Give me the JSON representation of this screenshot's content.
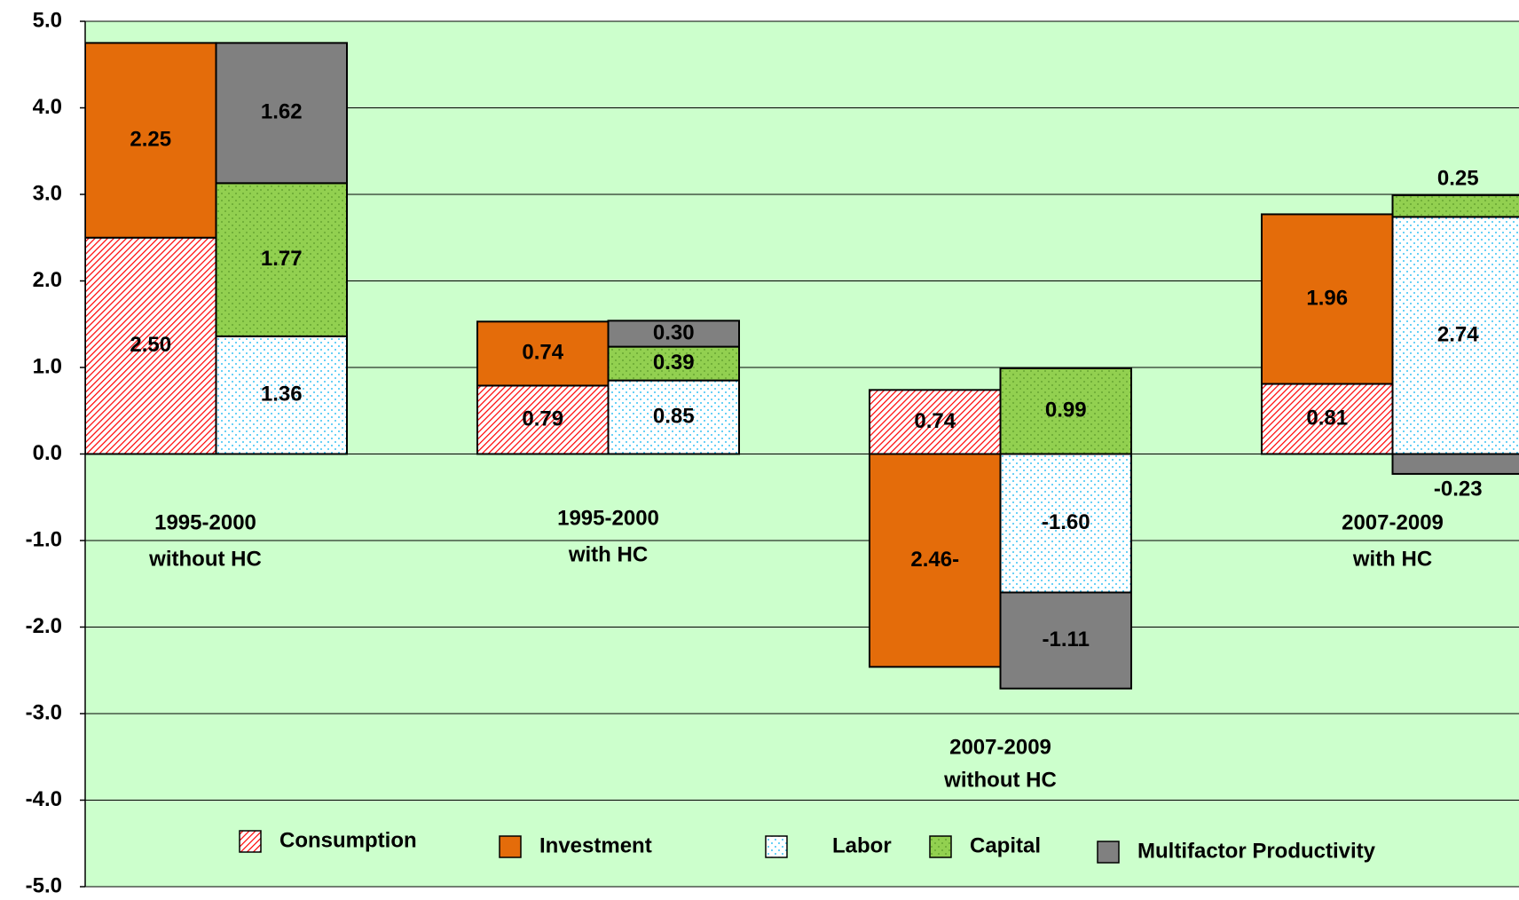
{
  "chart_data": {
    "type": "bar",
    "stacked": true,
    "categories": [
      [
        "1995-2000",
        "without  HC"
      ],
      [
        "1995-2000",
        "with HC"
      ],
      [
        "2007-2009",
        "without HC"
      ],
      [
        "2007-2009",
        "with HC"
      ]
    ],
    "series": [
      {
        "name": "Consumption",
        "stack": "output",
        "fill": "hatch",
        "color": "#ff0000",
        "values": [
          2.5,
          0.79,
          0.74,
          0.81
        ],
        "value_labels": [
          "2.50",
          "0.79",
          "0.74",
          "0.81"
        ]
      },
      {
        "name": "Investment",
        "stack": "output",
        "fill": "solid",
        "color": "#e46c0a",
        "values": [
          2.25,
          0.74,
          -2.46,
          1.96
        ],
        "value_labels": [
          "2.25",
          "0.74",
          "2.46-",
          "1.96"
        ]
      },
      {
        "name": "Labor",
        "stack": "input",
        "fill": "dots",
        "color": "#00b0f0",
        "values": [
          1.36,
          0.85,
          -1.6,
          2.74
        ],
        "value_labels": [
          "1.36",
          "0.85",
          "-1.60",
          "2.74"
        ]
      },
      {
        "name": "Capital",
        "stack": "input",
        "fill": "dots-green",
        "color": "#92d050",
        "values": [
          1.77,
          0.39,
          0.99,
          0.25
        ],
        "value_labels": [
          "1.77",
          "0.39",
          "0.99",
          "0.25"
        ]
      },
      {
        "name": "Multifactor Productivity",
        "stack": "input",
        "fill": "solid",
        "color": "#808080",
        "values": [
          1.62,
          0.3,
          -1.11,
          -0.23
        ],
        "value_labels": [
          "1.62",
          "0.30",
          "-1.11",
          "-0.23"
        ]
      }
    ],
    "ylim": [
      -5,
      5
    ],
    "yticks": [
      {
        "value": -5,
        "label": "-5.0"
      },
      {
        "value": -4,
        "label": "-4.0"
      },
      {
        "value": -3,
        "label": "-3.0"
      },
      {
        "value": -2,
        "label": "-2.0"
      },
      {
        "value": -1,
        "label": "-1.0"
      },
      {
        "value": 0,
        "label": "0.0"
      },
      {
        "value": 1,
        "label": "1.0"
      },
      {
        "value": 2,
        "label": "2.0"
      },
      {
        "value": 3,
        "label": "3.0"
      },
      {
        "value": 4,
        "label": "4.0"
      },
      {
        "value": 5,
        "label": "5.0"
      }
    ],
    "grid": true,
    "plot_background": "#ccffcc",
    "legend": "bottom"
  }
}
